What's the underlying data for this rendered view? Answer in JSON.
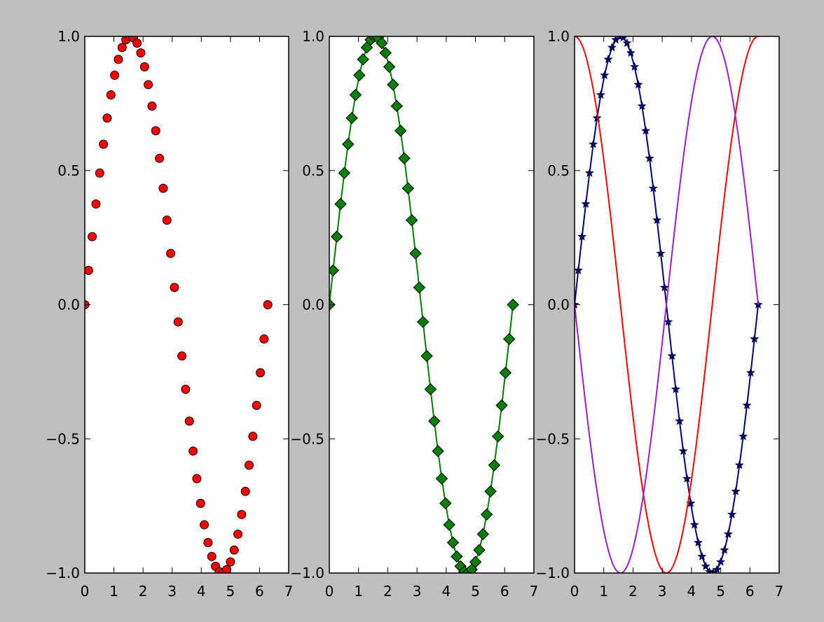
{
  "figure": {
    "background": "#bfbfbf"
  },
  "chart_data": [
    {
      "type": "scatter",
      "title": "",
      "xlabel": "",
      "ylabel": "",
      "xlim": [
        0,
        7
      ],
      "ylim": [
        -1.0,
        1.0
      ],
      "xticks": [
        "0",
        "1",
        "2",
        "3",
        "4",
        "5",
        "6",
        "7"
      ],
      "yticks": [
        "−1.0",
        "−0.5",
        "0.0",
        "0.5",
        "1.0"
      ],
      "grid": false,
      "series": [
        {
          "function": "sin(x)",
          "x_range": [
            0,
            6.2832
          ],
          "n_points": 50,
          "color": "#ff0000",
          "marker": "circle",
          "line": false
        }
      ]
    },
    {
      "type": "line",
      "title": "",
      "xlabel": "",
      "ylabel": "",
      "xlim": [
        0,
        7
      ],
      "ylim": [
        -1.0,
        1.0
      ],
      "xticks": [
        "0",
        "1",
        "2",
        "3",
        "4",
        "5",
        "6",
        "7"
      ],
      "yticks": [
        "−1.0",
        "−0.5",
        "0.0",
        "0.5",
        "1.0"
      ],
      "grid": false,
      "series": [
        {
          "function": "sin(x)",
          "x_range": [
            0,
            6.2832
          ],
          "n_points": 50,
          "color": "#007f00",
          "marker": "diamond",
          "line": true
        }
      ]
    },
    {
      "type": "line",
      "title": "",
      "xlabel": "",
      "ylabel": "",
      "xlim": [
        0,
        7
      ],
      "ylim": [
        -1.0,
        1.0
      ],
      "xticks": [
        "0",
        "1",
        "2",
        "3",
        "4",
        "5",
        "6",
        "7"
      ],
      "yticks": [
        "−1.0",
        "−0.5",
        "0.0",
        "0.5",
        "1.0"
      ],
      "grid": false,
      "series": [
        {
          "function": "sin(x)",
          "x_range": [
            0,
            6.2832
          ],
          "n_points": 50,
          "color": "#000080",
          "marker": "star",
          "line": true
        },
        {
          "function": "cos(x)",
          "x_range": [
            0,
            6.2832
          ],
          "n_points": 200,
          "color": "#ff0000",
          "marker": "none",
          "line": true
        },
        {
          "function": "-sin(x)",
          "x_range": [
            0,
            6.2832
          ],
          "n_points": 200,
          "color": "#9a1dd6",
          "marker": "none",
          "line": true
        }
      ]
    }
  ]
}
